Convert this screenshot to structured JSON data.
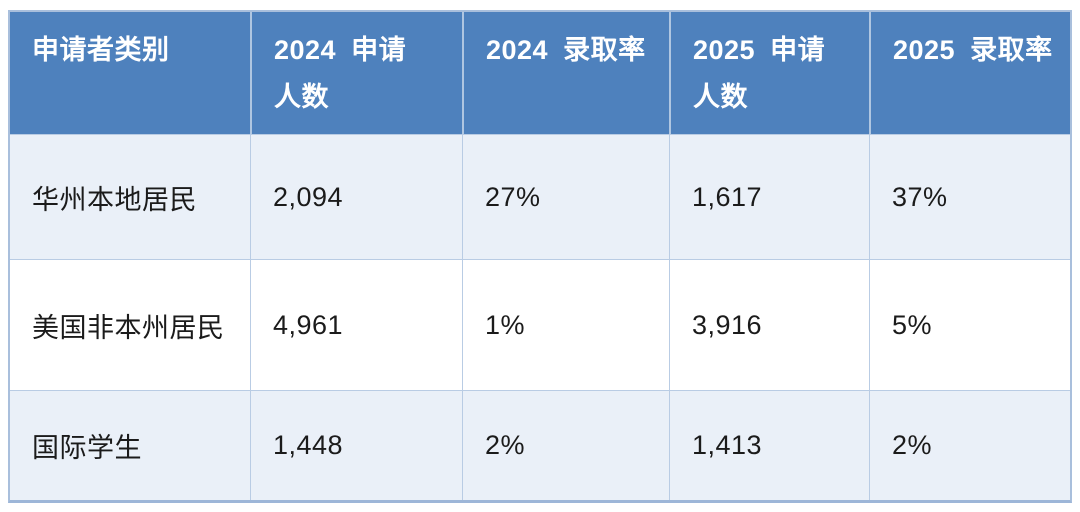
{
  "chart_data": {
    "type": "table",
    "columns": [
      "申请者类别",
      "2024 申请人数",
      "2024 录取率",
      "2025 申请人数",
      "2025 录取率"
    ],
    "rows": [
      [
        "华州本地居民",
        "2,094",
        "27%",
        "1,617",
        "37%"
      ],
      [
        "美国非本州居民",
        "4,961",
        "1%",
        "3,916",
        "5%"
      ],
      [
        "国际学生",
        "1,448",
        "2%",
        "1,413",
        "2%"
      ]
    ]
  },
  "header_lines": [
    [
      "申请者类别"
    ],
    [
      "2024 申请",
      "人数"
    ],
    [
      "2024 录取率"
    ],
    [
      "2025 申请",
      "人数"
    ],
    [
      "2025 录取率"
    ]
  ],
  "colors": {
    "header_bg": "#4E81BD",
    "header_text": "#FFFFFF",
    "row_alt_bg": "#EAF0F8",
    "row_bg": "#FFFFFF",
    "grid_line": "#B9CCE4",
    "outer_border": "#A9BFDC",
    "bottom_border": "#9DB6D8",
    "body_text": "#1B1B1B"
  }
}
